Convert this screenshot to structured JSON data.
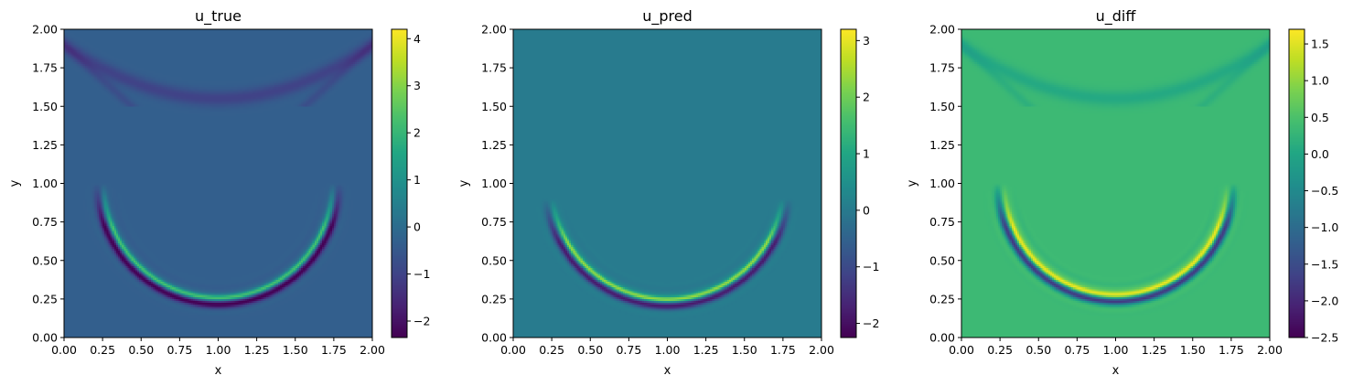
{
  "chart_data": [
    {
      "type": "heatmap",
      "title": "u_true",
      "xlabel": "x",
      "ylabel": "y",
      "xlim": [
        0,
        2
      ],
      "ylim": [
        0,
        2
      ],
      "xticks": [
        "0.00",
        "0.25",
        "0.50",
        "0.75",
        "1.00",
        "1.25",
        "1.50",
        "1.75",
        "2.00"
      ],
      "yticks": [
        "0.00",
        "0.25",
        "0.50",
        "0.75",
        "1.00",
        "1.25",
        "1.50",
        "1.75",
        "2.00"
      ],
      "colorbar": {
        "range": [
          -2.35,
          4.2
        ],
        "ticks": [
          -2,
          -1,
          0,
          1,
          2,
          3,
          4
        ],
        "tick_labels": [
          "−2",
          "−1",
          "0",
          "1",
          "2",
          "3",
          "4"
        ]
      },
      "colormap": "viridis",
      "background_value": -0.35,
      "wavefront": {
        "center_x": 1.0,
        "center_y": 1.0,
        "radius": 0.76,
        "y_max": 1.0,
        "inner_value": 2.9,
        "outer_value": -2.2
      },
      "upper_reflection": {
        "center_y": 1.55,
        "value": -0.7
      }
    },
    {
      "type": "heatmap",
      "title": "u_pred",
      "xlabel": "x",
      "ylabel": "y",
      "xlim": [
        0,
        2
      ],
      "ylim": [
        0,
        2
      ],
      "xticks": [
        "0.00",
        "0.25",
        "0.50",
        "0.75",
        "1.00",
        "1.25",
        "1.50",
        "1.75",
        "2.00"
      ],
      "yticks": [
        "0.00",
        "0.25",
        "0.50",
        "0.75",
        "1.00",
        "1.25",
        "1.50",
        "1.75",
        "2.00"
      ],
      "colorbar": {
        "range": [
          -2.25,
          3.2
        ],
        "ticks": [
          -2,
          -1,
          0,
          1,
          2,
          3
        ],
        "tick_labels": [
          "−2",
          "−1",
          "0",
          "1",
          "2",
          "3"
        ]
      },
      "colormap": "viridis",
      "background_value": 0.0,
      "wavefront": {
        "center_x": 1.0,
        "center_y": 1.0,
        "radius": 0.77,
        "y_max": 0.9,
        "inner_value": 2.6,
        "outer_value": -2.0
      },
      "upper_reflection": null
    },
    {
      "type": "heatmap",
      "title": "u_diff",
      "xlabel": "x",
      "ylabel": "y",
      "xlim": [
        0,
        2
      ],
      "ylim": [
        0,
        2
      ],
      "xticks": [
        "0.00",
        "0.25",
        "0.50",
        "0.75",
        "1.00",
        "1.25",
        "1.50",
        "1.75",
        "2.00"
      ],
      "yticks": [
        "0.00",
        "0.25",
        "0.50",
        "0.75",
        "1.00",
        "1.25",
        "1.50",
        "1.75",
        "2.00"
      ],
      "colorbar": {
        "range": [
          -2.5,
          1.7
        ],
        "ticks": [
          -2.5,
          -2.0,
          -1.5,
          -1.0,
          -0.5,
          0.0,
          0.5,
          1.0,
          1.5
        ],
        "tick_labels": [
          "−2.5",
          "−2.0",
          "−1.5",
          "−1.0",
          "−0.5",
          "0.0",
          "0.5",
          "1.0",
          "1.5"
        ]
      },
      "colormap": "viridis",
      "background_value": 0.35,
      "wavefront": {
        "center_x": 1.0,
        "center_y": 1.0,
        "radius": 0.74,
        "y_max": 1.0,
        "inner_value": 1.5,
        "outer_value": -2.3
      },
      "upper_reflection": {
        "center_y": 1.55,
        "value": -0.3
      }
    }
  ]
}
